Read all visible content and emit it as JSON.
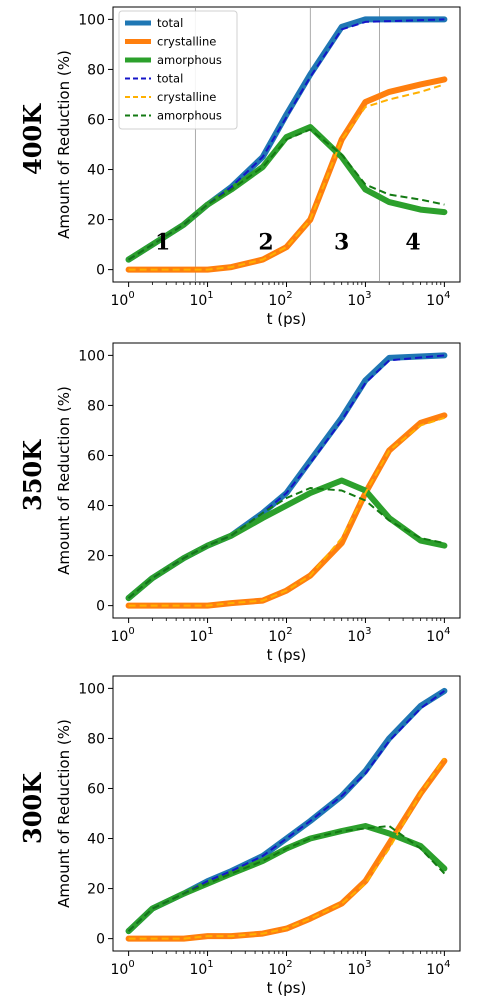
{
  "colors": {
    "total_sim": "#1f77b4",
    "crystalline_sim": "#ff7f0e",
    "amorphous_sim": "#2ca02c",
    "total_model": "#1515c8",
    "crystalline_model": "#ffb000",
    "amorphous_model": "#137a13"
  },
  "chart_data": [
    {
      "type": "line",
      "panel_label": "400K",
      "xlabel": "t (ps)",
      "ylabel": "Amount of Reduction (%)",
      "xscale": "log",
      "xlim": [
        1,
        10000
      ],
      "ylim": [
        0,
        100
      ],
      "y_ticks": [
        "0",
        "20",
        "40",
        "60",
        "80",
        "100"
      ],
      "x_ticks": [
        {
          "base": "10",
          "exp": "0"
        },
        {
          "base": "10",
          "exp": "1"
        },
        {
          "base": "10",
          "exp": "2"
        },
        {
          "base": "10",
          "exp": "3"
        },
        {
          "base": "10",
          "exp": "4"
        }
      ],
      "legend": {
        "placement": "top-left",
        "entries": [
          "total",
          "crystalline",
          "amorphous",
          "total",
          "crystalline",
          "amorphous"
        ]
      },
      "region_dividers_x": [
        7,
        200,
        1500
      ],
      "region_labels": [
        {
          "text": "1",
          "x": 2.7,
          "y": 8
        },
        {
          "text": "2",
          "x": 55,
          "y": 8
        },
        {
          "text": "3",
          "x": 500,
          "y": 8
        },
        {
          "text": "4",
          "x": 4000,
          "y": 8
        }
      ],
      "series": [
        {
          "name": "total",
          "style": "sim",
          "color_key": "total_sim",
          "points": [
            [
              1,
              4
            ],
            [
              2,
              10
            ],
            [
              5,
              18
            ],
            [
              10,
              26
            ],
            [
              20,
              33
            ],
            [
              50,
              45
            ],
            [
              100,
              62
            ],
            [
              200,
              78
            ],
            [
              500,
              97
            ],
            [
              1000,
              100
            ],
            [
              10000,
              100
            ]
          ]
        },
        {
          "name": "crystalline",
          "style": "sim",
          "color_key": "crystalline_sim",
          "points": [
            [
              1,
              0
            ],
            [
              10,
              0
            ],
            [
              20,
              1
            ],
            [
              50,
              4
            ],
            [
              100,
              9
            ],
            [
              200,
              20
            ],
            [
              500,
              52
            ],
            [
              1000,
              67
            ],
            [
              2000,
              71
            ],
            [
              5000,
              74
            ],
            [
              10000,
              76
            ]
          ]
        },
        {
          "name": "amorphous",
          "style": "sim",
          "color_key": "amorphous_sim",
          "points": [
            [
              1,
              4
            ],
            [
              2,
              10
            ],
            [
              5,
              18
            ],
            [
              10,
              26
            ],
            [
              20,
              32
            ],
            [
              50,
              41
            ],
            [
              100,
              53
            ],
            [
              200,
              57
            ],
            [
              500,
              45
            ],
            [
              1000,
              32
            ],
            [
              2000,
              27
            ],
            [
              5000,
              24
            ],
            [
              10000,
              23
            ]
          ]
        },
        {
          "name": "total",
          "style": "model",
          "color_key": "total_model",
          "points": [
            [
              1,
              4
            ],
            [
              2,
              10
            ],
            [
              5,
              18
            ],
            [
              10,
              26
            ],
            [
              20,
              33
            ],
            [
              50,
              45
            ],
            [
              100,
              61
            ],
            [
              200,
              77
            ],
            [
              500,
              96
            ],
            [
              1000,
              99
            ],
            [
              10000,
              100
            ]
          ]
        },
        {
          "name": "crystalline",
          "style": "model",
          "color_key": "crystalline_model",
          "points": [
            [
              1,
              0
            ],
            [
              10,
              0
            ],
            [
              20,
              1
            ],
            [
              50,
              4
            ],
            [
              100,
              9
            ],
            [
              200,
              20
            ],
            [
              500,
              52
            ],
            [
              1000,
              65
            ],
            [
              2000,
              68
            ],
            [
              5000,
              71
            ],
            [
              10000,
              74
            ]
          ]
        },
        {
          "name": "amorphous",
          "style": "model",
          "color_key": "amorphous_model",
          "points": [
            [
              1,
              4
            ],
            [
              2,
              10
            ],
            [
              5,
              18
            ],
            [
              10,
              26
            ],
            [
              20,
              32
            ],
            [
              50,
              41
            ],
            [
              100,
              52
            ],
            [
              200,
              56
            ],
            [
              500,
              46
            ],
            [
              1000,
              34
            ],
            [
              2000,
              30
            ],
            [
              5000,
              28
            ],
            [
              10000,
              26
            ]
          ]
        }
      ]
    },
    {
      "type": "line",
      "panel_label": "350K",
      "xlabel": "t (ps)",
      "ylabel": "Amount of Reduction (%)",
      "xscale": "log",
      "xlim": [
        1,
        10000
      ],
      "ylim": [
        0,
        100
      ],
      "y_ticks": [
        "0",
        "20",
        "40",
        "60",
        "80",
        "100"
      ],
      "x_ticks": [
        {
          "base": "10",
          "exp": "0"
        },
        {
          "base": "10",
          "exp": "1"
        },
        {
          "base": "10",
          "exp": "2"
        },
        {
          "base": "10",
          "exp": "3"
        },
        {
          "base": "10",
          "exp": "4"
        }
      ],
      "series": [
        {
          "name": "total",
          "style": "sim",
          "color_key": "total_sim",
          "points": [
            [
              1,
              3
            ],
            [
              2,
              11
            ],
            [
              5,
              19
            ],
            [
              10,
              24
            ],
            [
              20,
              28
            ],
            [
              50,
              37
            ],
            [
              100,
              45
            ],
            [
              200,
              58
            ],
            [
              500,
              75
            ],
            [
              1000,
              90
            ],
            [
              2000,
              99
            ],
            [
              10000,
              100
            ]
          ]
        },
        {
          "name": "crystalline",
          "style": "sim",
          "color_key": "crystalline_sim",
          "points": [
            [
              1,
              0
            ],
            [
              10,
              0
            ],
            [
              20,
              1
            ],
            [
              50,
              2
            ],
            [
              100,
              6
            ],
            [
              200,
              12
            ],
            [
              500,
              25
            ],
            [
              1000,
              45
            ],
            [
              2000,
              62
            ],
            [
              5000,
              73
            ],
            [
              10000,
              76
            ]
          ]
        },
        {
          "name": "amorphous",
          "style": "sim",
          "color_key": "amorphous_sim",
          "points": [
            [
              1,
              3
            ],
            [
              2,
              11
            ],
            [
              5,
              19
            ],
            [
              10,
              24
            ],
            [
              20,
              28
            ],
            [
              50,
              35
            ],
            [
              100,
              40
            ],
            [
              200,
              45
            ],
            [
              500,
              50
            ],
            [
              1000,
              46
            ],
            [
              2000,
              35
            ],
            [
              5000,
              26
            ],
            [
              10000,
              24
            ]
          ]
        },
        {
          "name": "total",
          "style": "model",
          "color_key": "total_model",
          "points": [
            [
              1,
              3
            ],
            [
              2,
              11
            ],
            [
              5,
              19
            ],
            [
              10,
              24
            ],
            [
              20,
              28
            ],
            [
              50,
              37
            ],
            [
              100,
              45
            ],
            [
              200,
              57
            ],
            [
              500,
              74
            ],
            [
              1000,
              89
            ],
            [
              2000,
              98
            ],
            [
              10000,
              100
            ]
          ]
        },
        {
          "name": "crystalline",
          "style": "model",
          "color_key": "crystalline_model",
          "points": [
            [
              1,
              0
            ],
            [
              10,
              0
            ],
            [
              20,
              1
            ],
            [
              50,
              2
            ],
            [
              100,
              6
            ],
            [
              200,
              12
            ],
            [
              500,
              27
            ],
            [
              1000,
              45
            ],
            [
              2000,
              62
            ],
            [
              5000,
              72
            ],
            [
              10000,
              75
            ]
          ]
        },
        {
          "name": "amorphous",
          "style": "model",
          "color_key": "amorphous_model",
          "points": [
            [
              1,
              3
            ],
            [
              2,
              11
            ],
            [
              5,
              19
            ],
            [
              10,
              24
            ],
            [
              20,
              28
            ],
            [
              50,
              37
            ],
            [
              100,
              43
            ],
            [
              200,
              47
            ],
            [
              500,
              46
            ],
            [
              1000,
              42
            ],
            [
              2000,
              34
            ],
            [
              5000,
              27
            ],
            [
              10000,
              25
            ]
          ]
        }
      ]
    },
    {
      "type": "line",
      "panel_label": "300K",
      "xlabel": "t (ps)",
      "ylabel": "Amount of Reduction (%)",
      "xscale": "log",
      "xlim": [
        1,
        10000
      ],
      "ylim": [
        0,
        100
      ],
      "y_ticks": [
        "0",
        "20",
        "40",
        "60",
        "80",
        "100"
      ],
      "x_ticks": [
        {
          "base": "10",
          "exp": "0"
        },
        {
          "base": "10",
          "exp": "1"
        },
        {
          "base": "10",
          "exp": "2"
        },
        {
          "base": "10",
          "exp": "3"
        },
        {
          "base": "10",
          "exp": "4"
        }
      ],
      "series": [
        {
          "name": "total",
          "style": "sim",
          "color_key": "total_sim",
          "points": [
            [
              1,
              3
            ],
            [
              2,
              12
            ],
            [
              5,
              18
            ],
            [
              10,
              23
            ],
            [
              20,
              27
            ],
            [
              50,
              33
            ],
            [
              100,
              40
            ],
            [
              200,
              47
            ],
            [
              500,
              57
            ],
            [
              1000,
              67
            ],
            [
              2000,
              80
            ],
            [
              5000,
              93
            ],
            [
              10000,
              99
            ]
          ]
        },
        {
          "name": "crystalline",
          "style": "sim",
          "color_key": "crystalline_sim",
          "points": [
            [
              1,
              0
            ],
            [
              5,
              0
            ],
            [
              10,
              1
            ],
            [
              20,
              1
            ],
            [
              50,
              2
            ],
            [
              100,
              4
            ],
            [
              200,
              8
            ],
            [
              500,
              14
            ],
            [
              1000,
              23
            ],
            [
              2000,
              38
            ],
            [
              5000,
              58
            ],
            [
              10000,
              71
            ]
          ]
        },
        {
          "name": "amorphous",
          "style": "sim",
          "color_key": "amorphous_sim",
          "points": [
            [
              1,
              3
            ],
            [
              2,
              12
            ],
            [
              5,
              18
            ],
            [
              10,
              22
            ],
            [
              20,
              26
            ],
            [
              50,
              31
            ],
            [
              100,
              36
            ],
            [
              200,
              40
            ],
            [
              500,
              43
            ],
            [
              1000,
              45
            ],
            [
              2000,
              42
            ],
            [
              5000,
              37
            ],
            [
              10000,
              28
            ]
          ]
        },
        {
          "name": "total",
          "style": "model",
          "color_key": "total_model",
          "points": [
            [
              1,
              3
            ],
            [
              2,
              12
            ],
            [
              5,
              18
            ],
            [
              10,
              23
            ],
            [
              20,
              27
            ],
            [
              50,
              33
            ],
            [
              100,
              40
            ],
            [
              200,
              47
            ],
            [
              500,
              57
            ],
            [
              1000,
              66
            ],
            [
              2000,
              79
            ],
            [
              5000,
              92
            ],
            [
              10000,
              99
            ]
          ]
        },
        {
          "name": "crystalline",
          "style": "model",
          "color_key": "crystalline_model",
          "points": [
            [
              1,
              0
            ],
            [
              5,
              0
            ],
            [
              10,
              1
            ],
            [
              20,
              1
            ],
            [
              50,
              2
            ],
            [
              100,
              4
            ],
            [
              200,
              8
            ],
            [
              500,
              14
            ],
            [
              1000,
              22
            ],
            [
              2000,
              36
            ],
            [
              5000,
              58
            ],
            [
              10000,
              72
            ]
          ]
        },
        {
          "name": "amorphous",
          "style": "model",
          "color_key": "amorphous_model",
          "points": [
            [
              1,
              3
            ],
            [
              2,
              12
            ],
            [
              5,
              18
            ],
            [
              10,
              22
            ],
            [
              20,
              26
            ],
            [
              50,
              31
            ],
            [
              100,
              36
            ],
            [
              200,
              40
            ],
            [
              500,
              43
            ],
            [
              1000,
              44
            ],
            [
              2000,
              45
            ],
            [
              5000,
              36
            ],
            [
              10000,
              26
            ]
          ]
        }
      ]
    }
  ]
}
